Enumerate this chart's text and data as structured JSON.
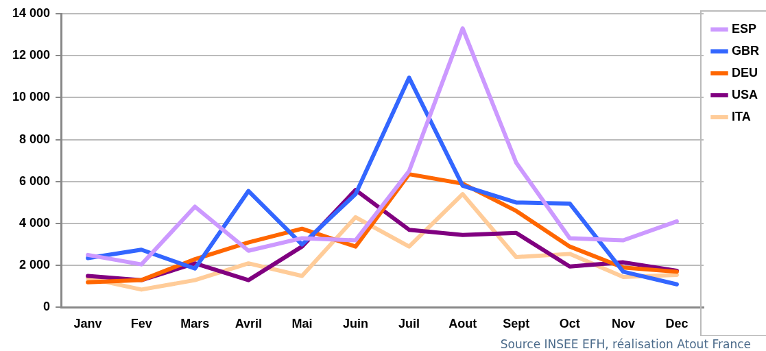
{
  "chart_data": {
    "type": "line",
    "categories": [
      "Janv",
      "Fev",
      "Mars",
      "Avril",
      "Mai",
      "Juin",
      "Juil",
      "Aout",
      "Sept",
      "Oct",
      "Nov",
      "Dec"
    ],
    "series": [
      {
        "name": "ESP",
        "color": "#cc99ff",
        "values": [
          2500,
          2050,
          4800,
          2700,
          3300,
          3200,
          6500,
          13300,
          6900,
          3300,
          3200,
          4100
        ]
      },
      {
        "name": "GBR",
        "color": "#3366ff",
        "values": [
          2350,
          2750,
          1850,
          5550,
          3000,
          5400,
          10950,
          5800,
          5000,
          4950,
          1700,
          1100
        ]
      },
      {
        "name": "DEU",
        "color": "#ff6600",
        "values": [
          1200,
          1300,
          2300,
          3100,
          3750,
          2900,
          6350,
          5900,
          4600,
          2900,
          1900,
          1700
        ]
      },
      {
        "name": "USA",
        "color": "#800080",
        "values": [
          1500,
          1300,
          2100,
          1300,
          2900,
          5600,
          3700,
          3450,
          3550,
          1950,
          2150,
          1750
        ]
      },
      {
        "name": "ITA",
        "color": "#ffcc99",
        "values": [
          1400,
          850,
          1300,
          2100,
          1500,
          4300,
          2900,
          5400,
          2400,
          2550,
          1450,
          1550
        ]
      }
    ],
    "ylim": [
      0,
      14000
    ],
    "yticks": [
      {
        "value": 0,
        "label": "0"
      },
      {
        "value": 2000,
        "label": "2 000"
      },
      {
        "value": 4000,
        "label": "4 000"
      },
      {
        "value": 6000,
        "label": "6 000"
      },
      {
        "value": 8000,
        "label": "8 000"
      },
      {
        "value": 10000,
        "label": "10 000"
      },
      {
        "value": 12000,
        "label": "12 000"
      },
      {
        "value": 14000,
        "label": "14 000"
      }
    ],
    "grid": "y",
    "legend": "top right",
    "marker": "none",
    "line_style": "solid",
    "annotations": [
      "Source INSEE EFH, réalisation Atout France"
    ]
  }
}
